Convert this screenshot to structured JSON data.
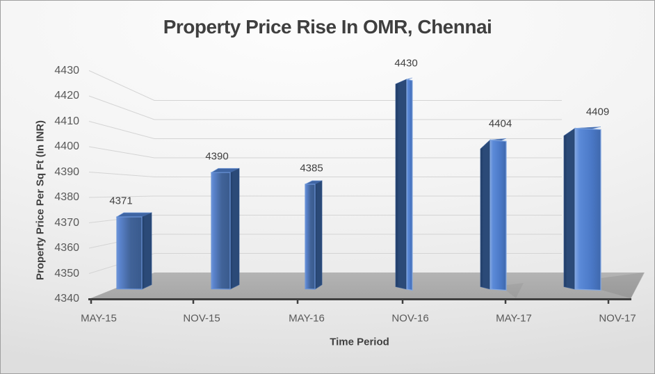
{
  "chart_data": {
    "type": "bar",
    "style": "3d-column",
    "title": "Property Price Rise In OMR, Chennai",
    "xlabel": "Time Period",
    "ylabel": "Property Price Per Sq Ft (In INR)",
    "categories": [
      "MAY-15",
      "NOV-15",
      "MAY-16",
      "NOV-16",
      "MAY-17",
      "NOV-17"
    ],
    "values": [
      4371,
      4390,
      4385,
      4430,
      4404,
      4409
    ],
    "data_labels": [
      "4371",
      "4390",
      "4385",
      "4430",
      "4404",
      "4409"
    ],
    "ylim": [
      4340,
      4430
    ],
    "ytick_step": 10,
    "yticks": [
      4340,
      4350,
      4360,
      4370,
      4380,
      4390,
      4400,
      4410,
      4420,
      4430
    ],
    "grid": true,
    "legend": false
  },
  "colors": {
    "background_center": "#fbfbfb",
    "background_edge": "#dedede",
    "title_text": "#3f3f3f",
    "tick_text": "#595959",
    "label_text": "#3f3f3f",
    "gridline": "#d4d4d4",
    "axis_line": "#3f3f3f",
    "floor_light": "#b4b4b4",
    "floor_dark": "#a6a6a6",
    "bar_edge_highlight": "#7fa4e0",
    "bar_front_light": "#5b84cd",
    "bar_front_mid": "#416398",
    "bar_front_dark": "#395a8d",
    "bar_side_shadow_dark": "#1e3a64",
    "bar_side_shadow": "#2b4a78",
    "bar_top": "#3f65a3"
  }
}
